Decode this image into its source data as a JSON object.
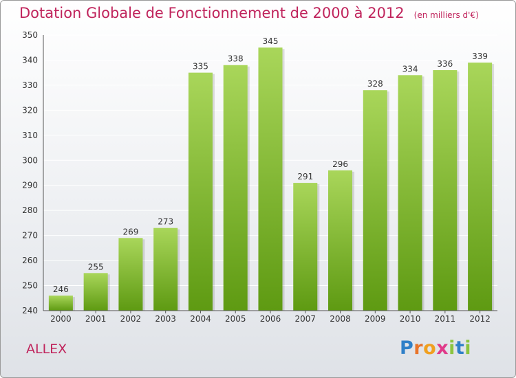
{
  "header": {
    "title": "Dotation Globale de Fonctionnement de 2000 à 2012",
    "unit": "(en milliers d'€)"
  },
  "footer": {
    "commune": "ALLEX",
    "logo": {
      "letters": [
        "P",
        "r",
        "o",
        "x",
        "i",
        "t",
        "i"
      ],
      "colors": [
        "#2f80c8",
        "#e8742a",
        "#f0a020",
        "#e03a8a",
        "#8bc43f",
        "#2f80c8",
        "#8bc43f"
      ]
    }
  },
  "colors": {
    "bar_light": "#a9d65a",
    "bar_dark": "#5e9a12",
    "grid": "#ffffff"
  },
  "chart_data": {
    "type": "bar",
    "categories": [
      "2000",
      "2001",
      "2002",
      "2003",
      "2004",
      "2005",
      "2006",
      "2007",
      "2008",
      "2009",
      "2010",
      "2011",
      "2012"
    ],
    "values": [
      246,
      255,
      269,
      273,
      335,
      338,
      345,
      291,
      296,
      328,
      334,
      336,
      339
    ],
    "title": "Dotation Globale de Fonctionnement de 2000 à 2012",
    "xlabel": "",
    "ylabel": "",
    "ylim": [
      240,
      350
    ],
    "yticks": [
      240,
      250,
      260,
      270,
      280,
      290,
      300,
      310,
      320,
      330,
      340,
      350
    ],
    "grid": true,
    "data_labels": true
  }
}
